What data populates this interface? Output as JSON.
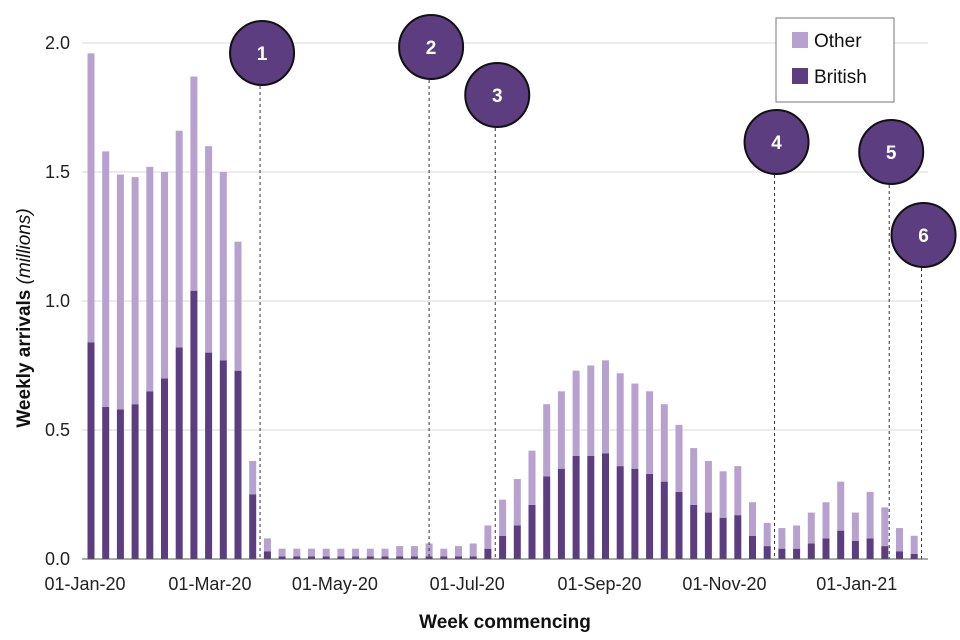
{
  "chart_data": {
    "type": "bar",
    "stacked": true,
    "title": "",
    "xlabel": "Week commencing",
    "ylabel": "Weekly arrivals",
    "ylabel_italic": "(millions)",
    "ylim": [
      0,
      2.0
    ],
    "yticks": [
      "0.0",
      "0.5",
      "1.0",
      "1.5",
      "2.0"
    ],
    "ytick_values": [
      0,
      0.5,
      1.0,
      1.5,
      2.0
    ],
    "xtick_labels": [
      {
        "label": "01-Jan-20",
        "index": 0
      },
      {
        "label": "01-Mar-20",
        "index": 8.5
      },
      {
        "label": "01-May-20",
        "index": 17
      },
      {
        "label": "01-Jul-20",
        "index": 26
      },
      {
        "label": "01-Sep-20",
        "index": 35
      },
      {
        "label": "01-Nov-20",
        "index": 43.5
      },
      {
        "label": "01-Jan-21",
        "index": 52.5
      },
      {
        "label": "01-Jan-21 ",
        "index": 0,
        "hidden": true
      }
    ],
    "legend": {
      "position": "top-right",
      "entries": [
        "Other",
        "British"
      ]
    },
    "colors": {
      "other": "#b7a2cf",
      "british": "#5b3d80",
      "grid": "#d9d9d9",
      "marker": "#5b3d80"
    },
    "series": [
      {
        "name": "British",
        "values": [
          0.84,
          0.59,
          0.58,
          0.6,
          0.65,
          0.7,
          0.82,
          1.04,
          0.8,
          0.77,
          0.73,
          0.25,
          0.03,
          0.01,
          0.01,
          0.01,
          0.01,
          0.01,
          0.01,
          0.01,
          0.01,
          0.01,
          0.01,
          0.01,
          0.01,
          0.01,
          0.01,
          0.04,
          0.09,
          0.13,
          0.21,
          0.32,
          0.35,
          0.4,
          0.4,
          0.41,
          0.36,
          0.35,
          0.33,
          0.3,
          0.26,
          0.21,
          0.18,
          0.16,
          0.17,
          0.09,
          0.05,
          0.04,
          0.04,
          0.06,
          0.08,
          0.11,
          0.07,
          0.08,
          0.05,
          0.03,
          0.02
        ]
      },
      {
        "name": "Other",
        "values": [
          1.12,
          0.99,
          0.91,
          0.88,
          0.87,
          0.8,
          0.84,
          0.83,
          0.8,
          0.73,
          0.5,
          0.13,
          0.05,
          0.03,
          0.03,
          0.03,
          0.03,
          0.03,
          0.03,
          0.03,
          0.03,
          0.04,
          0.04,
          0.05,
          0.03,
          0.04,
          0.05,
          0.09,
          0.14,
          0.18,
          0.21,
          0.28,
          0.3,
          0.33,
          0.35,
          0.36,
          0.36,
          0.33,
          0.32,
          0.3,
          0.26,
          0.22,
          0.2,
          0.18,
          0.19,
          0.13,
          0.09,
          0.08,
          0.09,
          0.12,
          0.14,
          0.19,
          0.11,
          0.18,
          0.15,
          0.09,
          0.07
        ]
      }
    ],
    "markers": [
      {
        "label": "1",
        "index": 11.5
      },
      {
        "label": "2",
        "index": 23
      },
      {
        "label": "3",
        "index": 27.5
      },
      {
        "label": "4",
        "index": 46.5
      },
      {
        "label": "5",
        "index": 54.3
      },
      {
        "label": "6",
        "index": 56.5
      }
    ]
  }
}
